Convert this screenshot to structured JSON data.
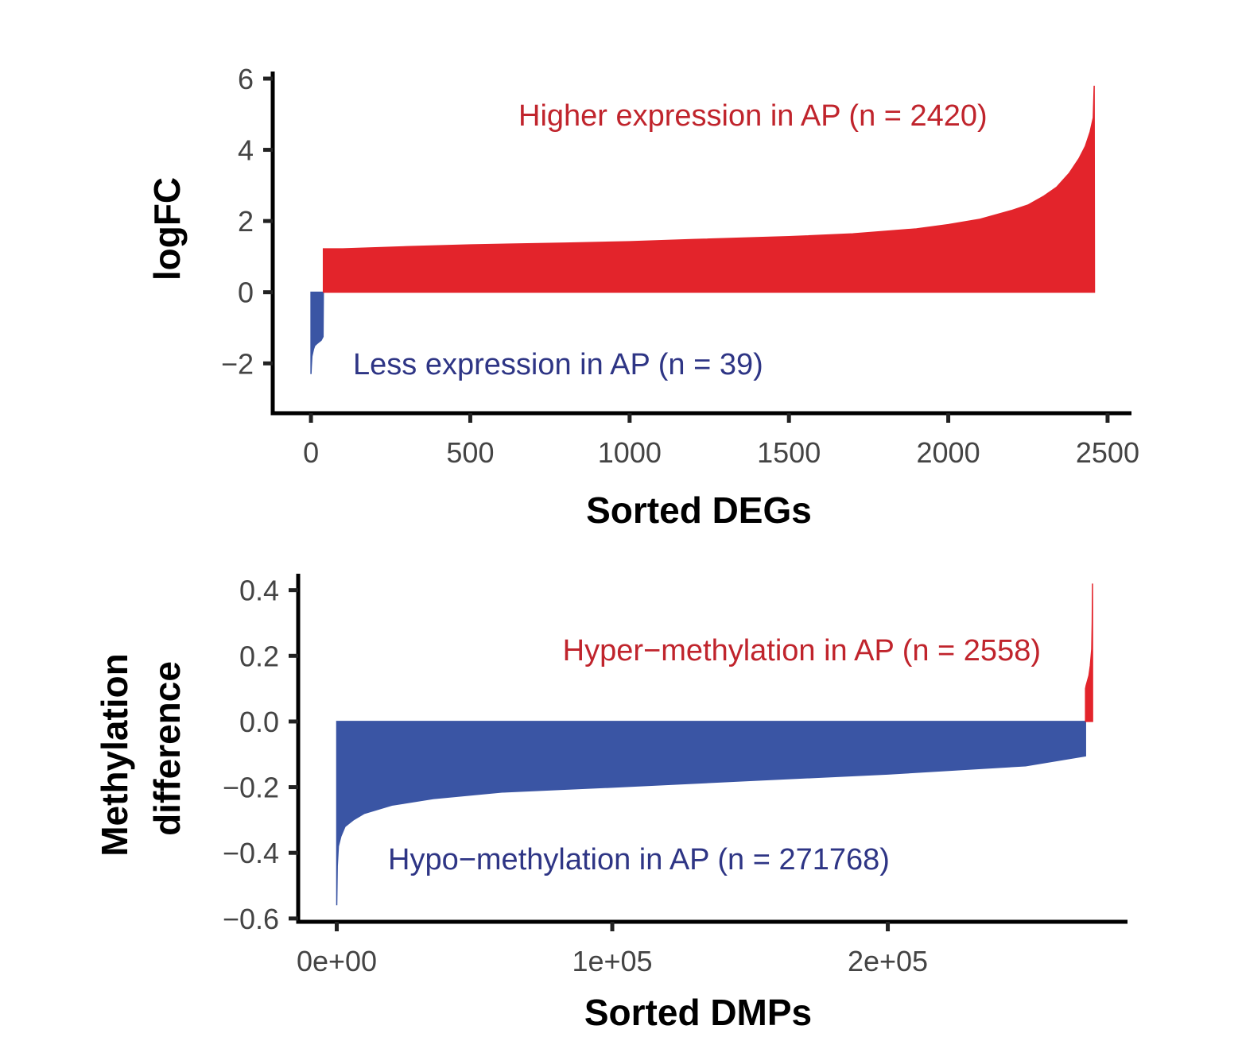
{
  "colors": {
    "positive": "#e3242b",
    "negative": "#3a55a4",
    "positive_text": "#c0242c",
    "negative_text": "#2e3585"
  },
  "chart_data": [
    {
      "type": "area",
      "title": "",
      "xlabel": "Sorted DEGs",
      "ylabel": "logFC",
      "xlim": [
        -120,
        2575
      ],
      "ylim": [
        -3.4,
        6.2
      ],
      "yticks": [
        6,
        4,
        2,
        0,
        -2
      ],
      "ytick_labels": [
        "6",
        "4",
        "2",
        "0",
        "−2"
      ],
      "xticks": [
        0,
        500,
        1000,
        1500,
        2000,
        2500
      ],
      "xtick_labels": [
        "0",
        "500",
        "1000",
        "1500",
        "2000",
        "2500"
      ],
      "series": [
        {
          "name": "Less expression in AP",
          "count": 39,
          "x": [
            0,
            1,
            3,
            8,
            12,
            18,
            25,
            32,
            38,
            39
          ],
          "y": [
            -2.3,
            -2.1,
            -1.8,
            -1.6,
            -1.5,
            -1.45,
            -1.4,
            -1.35,
            -1.25,
            0
          ]
        },
        {
          "name": "Higher expression in AP",
          "count": 2420,
          "x": [
            39,
            100,
            300,
            500,
            800,
            1000,
            1200,
            1500,
            1700,
            1900,
            2000,
            2100,
            2200,
            2250,
            2300,
            2340,
            2380,
            2410,
            2430,
            2445,
            2455,
            2458,
            2459
          ],
          "y": [
            1.22,
            1.22,
            1.28,
            1.33,
            1.38,
            1.42,
            1.48,
            1.56,
            1.64,
            1.78,
            1.9,
            2.05,
            2.3,
            2.45,
            2.7,
            2.95,
            3.35,
            3.75,
            4.1,
            4.5,
            4.9,
            5.8,
            0
          ]
        }
      ],
      "annotations": [
        {
          "text": "Higher expression in AP (n = 2420)",
          "color": "positive"
        },
        {
          "text": "Less expression in AP (n = 39)",
          "color": "negative"
        }
      ]
    },
    {
      "type": "area",
      "title": "",
      "xlabel": "Sorted DMPs",
      "ylabel": "Methylation difference",
      "ylabel_lines": [
        "Methylation",
        "difference"
      ],
      "xlim": [
        -14000,
        287000
      ],
      "ylim": [
        -0.61,
        0.45
      ],
      "yticks": [
        0.4,
        0.2,
        0.0,
        -0.2,
        -0.4,
        -0.6
      ],
      "ytick_labels": [
        "0.4",
        "0.2",
        "0.0",
        "−0.2",
        "−0.4",
        "−0.6"
      ],
      "xticks": [
        0,
        100000,
        200000
      ],
      "xtick_labels": [
        "0e+00",
        "1e+05",
        "2e+05"
      ],
      "series": [
        {
          "name": "Hypo-methylation in AP",
          "count": 271768,
          "x": [
            0,
            200,
            600,
            1500,
            3000,
            6000,
            10000,
            20000,
            35000,
            60000,
            100000,
            150000,
            200000,
            250000,
            271768,
            271768
          ],
          "y": [
            -0.56,
            -0.44,
            -0.38,
            -0.35,
            -0.32,
            -0.3,
            -0.28,
            -0.255,
            -0.235,
            -0.215,
            -0.2,
            -0.18,
            -0.16,
            -0.135,
            -0.105,
            0
          ]
        },
        {
          "name": "Hyper-methylation in AP",
          "count": 2558,
          "x": [
            271768,
            272000,
            273000,
            273500,
            274000,
            274200,
            274300,
            274326
          ],
          "y": [
            0.1,
            0.11,
            0.14,
            0.17,
            0.22,
            0.3,
            0.42,
            0
          ]
        }
      ],
      "annotations": [
        {
          "text": "Hyper−methylation in AP (n = 2558)",
          "color": "positive"
        },
        {
          "text": "Hypo−methylation in AP (n = 271768)",
          "color": "negative"
        }
      ]
    }
  ]
}
